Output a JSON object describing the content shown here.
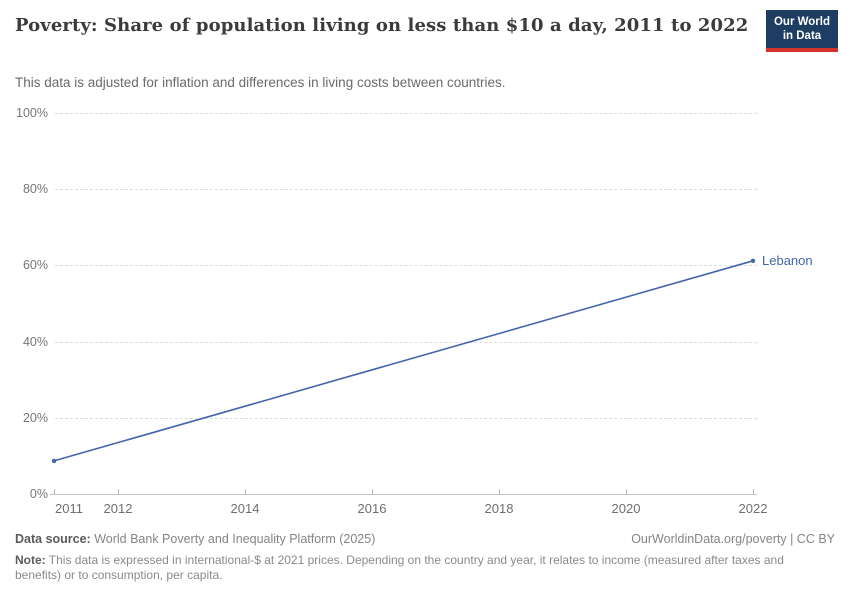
{
  "header": {
    "title": "Poverty: Share of population living on less than $10 a day, 2011 to 2022",
    "subtitle": "This data is adjusted for inflation and differences in living costs between countries.",
    "logo": {
      "line1": "Our World",
      "line2": "in Data"
    }
  },
  "chart_data": {
    "type": "line",
    "title": "Poverty: Share of population living on less than $10 a day, 2011 to 2022",
    "unit": "%",
    "x": [
      2011,
      2022
    ],
    "series": [
      {
        "name": "Lebanon",
        "values": [
          8.7,
          61.2
        ]
      }
    ],
    "x_ticks": [
      2011,
      2012,
      2014,
      2016,
      2018,
      2020,
      2022
    ],
    "y_ticks": [
      0,
      20,
      40,
      60,
      80,
      100
    ],
    "y_tick_suffix": "%",
    "xlim": [
      2011,
      2022
    ],
    "ylim": [
      0,
      100
    ],
    "grid": true,
    "legend_position": "end-of-line",
    "line_color": "#4365a8",
    "label_color": "#4365a8"
  },
  "colors": {
    "logo_bg": "#1d3d63",
    "logo_accent": "#d13328",
    "gridline": "#dcdcdc",
    "axis": "#c4c4c4"
  },
  "footer": {
    "source_label": "Data source:",
    "source_text": " World Bank Poverty and Inequality Platform (2025)",
    "link": "OurWorldinData.org/poverty | CC BY",
    "note_label": "Note:",
    "note_text": " This data is expressed in international-$ at 2021 prices. Depending on the country and year, it relates to income (measured after taxes and benefits) or to consumption, per capita."
  }
}
